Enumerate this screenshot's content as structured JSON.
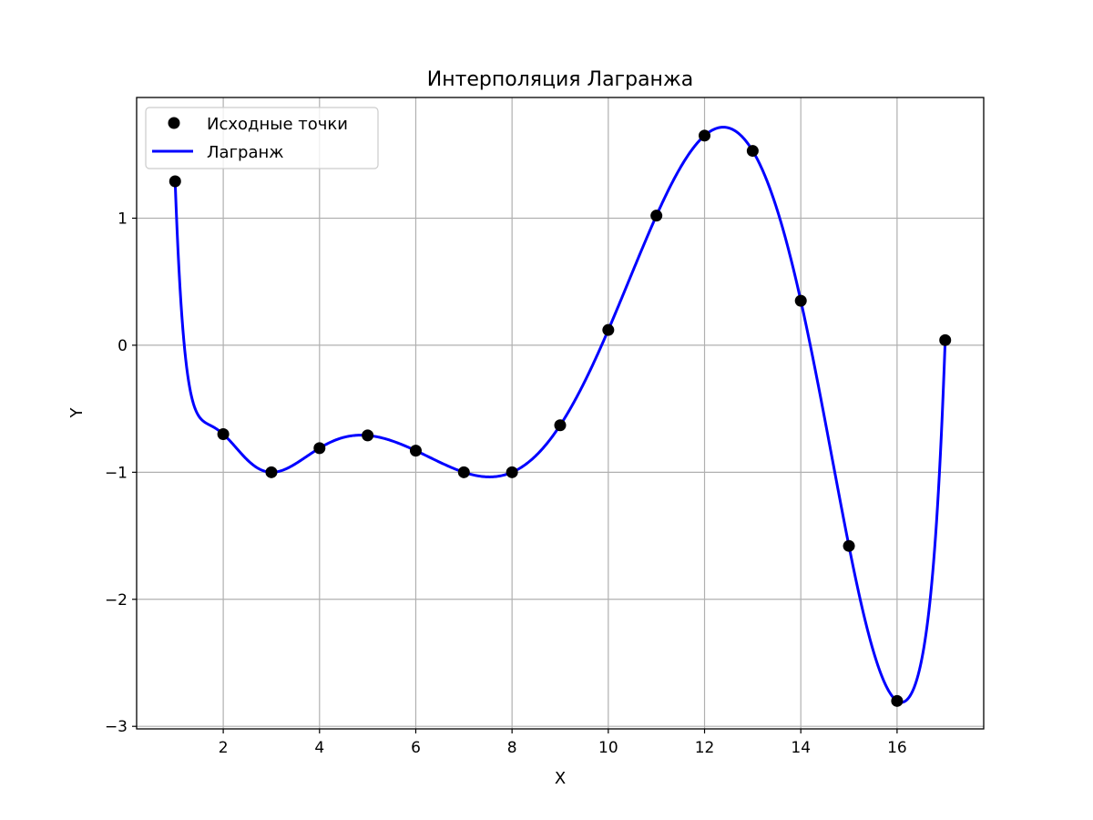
{
  "chart_data": {
    "type": "line",
    "title": "Интерполяция Лагранжа",
    "xlabel": "X",
    "ylabel": "Y",
    "xlim": [
      0.2,
      17.8
    ],
    "ylim": [
      -3.02,
      1.95
    ],
    "xticks": [
      2,
      4,
      6,
      8,
      10,
      12,
      14,
      16
    ],
    "yticks": [
      -3,
      -2,
      -1,
      0,
      1
    ],
    "grid": true,
    "legend_position": "top-left",
    "series": [
      {
        "name": "Исходные точки",
        "kind": "scatter",
        "color": "#000000",
        "x": [
          1,
          2,
          3,
          4,
          5,
          6,
          7,
          8,
          9,
          10,
          11,
          12,
          13,
          14,
          15,
          16,
          17
        ],
        "y": [
          1.29,
          -0.7,
          -1.0,
          -0.81,
          -0.71,
          -0.83,
          -1.0,
          -1.0,
          -0.63,
          0.12,
          1.02,
          1.65,
          1.53,
          0.35,
          -1.58,
          -2.8,
          0.04
        ]
      },
      {
        "name": "Лагранж",
        "kind": "line",
        "color": "#0000ff"
      }
    ]
  }
}
